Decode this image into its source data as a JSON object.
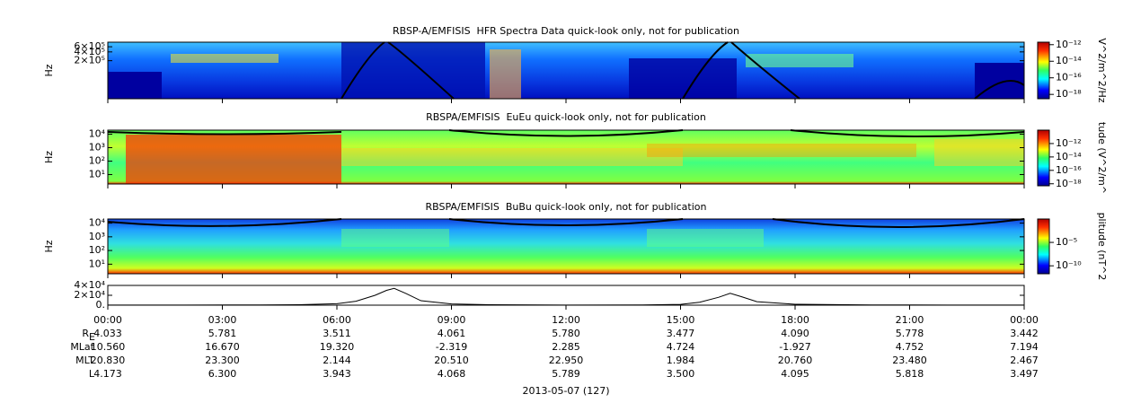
{
  "chart_data": [
    {
      "type": "spectrogram",
      "title": "RBSP-A/EMFISIS  HFR Spectra Data quick-look only, not for publication",
      "ylabel": "Hz",
      "log_y": true,
      "ylim": [
        10000,
        860000
      ],
      "yticks": [
        {
          "value": 200000,
          "label": "2×10⁵"
        },
        {
          "value": 400000,
          "label": "4×10⁵"
        },
        {
          "value": 600000,
          "label": "6×10⁵"
        }
      ],
      "colorbar": {
        "label": "V^2/m^2/Hz",
        "ylim": [
          3e-19,
          2e-12
        ],
        "yticks": [
          {
            "value": 1e-18,
            "label": "10⁻¹⁸"
          },
          {
            "value": 1e-16,
            "label": "10⁻¹⁶"
          },
          {
            "value": 1e-14,
            "label": "10⁻¹⁴"
          },
          {
            "value": 1e-12,
            "label": "10⁻¹²"
          }
        ]
      }
    },
    {
      "type": "spectrogram",
      "title": "RBSPA/EMFISIS  EuEu quick-look only, not for publication",
      "ylabel": "Hz",
      "log_y": true,
      "ylim": [
        2,
        20000
      ],
      "yticks": [
        {
          "value": 10,
          "label": "10¹"
        },
        {
          "value": 100,
          "label": "10²"
        },
        {
          "value": 1000,
          "label": "10³"
        },
        {
          "value": 10000,
          "label": "10⁴"
        }
      ],
      "colorbar": {
        "label": "tude (V^2/m^",
        "ylim": [
          5e-19,
          1e-10
        ],
        "yticks": [
          {
            "value": 1e-18,
            "label": "10⁻¹⁸"
          },
          {
            "value": 1e-16,
            "label": "10⁻¹⁶"
          },
          {
            "value": 1e-14,
            "label": "10⁻¹⁴"
          },
          {
            "value": 1e-12,
            "label": "10⁻¹²"
          }
        ]
      }
    },
    {
      "type": "spectrogram",
      "title": "RBSPA/EMFISIS  BuBu quick-look only, not for publication",
      "ylabel": "Hz",
      "log_y": true,
      "ylim": [
        2,
        20000
      ],
      "yticks": [
        {
          "value": 10,
          "label": "10¹"
        },
        {
          "value": 100,
          "label": "10²"
        },
        {
          "value": 1000,
          "label": "10³"
        },
        {
          "value": 10000,
          "label": "10⁴"
        }
      ],
      "colorbar": {
        "label": "plitude (nT^2",
        "ylim": [
          2e-12,
          1
        ],
        "yticks": [
          {
            "value": 1e-10,
            "label": "10⁻¹⁰"
          },
          {
            "value": 1e-05,
            "label": "10⁻⁵"
          }
        ]
      }
    },
    {
      "type": "line",
      "color": "#000000",
      "xlim": [
        0,
        24
      ],
      "ylim": [
        0,
        40000
      ],
      "yticks": [
        {
          "value": 0,
          "label": "0."
        },
        {
          "value": 20000,
          "label": "2×10⁴"
        },
        {
          "value": 40000,
          "label": "4×10⁴"
        }
      ],
      "x": [
        0,
        2,
        4,
        5,
        6,
        6.5,
        7,
        7.3,
        7.5,
        7.8,
        8.2,
        9,
        10,
        12,
        14,
        15,
        15.5,
        16,
        16.3,
        16.6,
        17,
        18,
        20,
        22,
        24
      ],
      "values": [
        200,
        300,
        500,
        1000,
        3000,
        8000,
        20000,
        30000,
        34000,
        24000,
        9000,
        2500,
        800,
        300,
        500,
        1500,
        6000,
        16000,
        24000,
        17000,
        7000,
        1800,
        500,
        300,
        200
      ]
    }
  ],
  "x_axis": {
    "ticks": [
      {
        "value": 0,
        "label": "00:00"
      },
      {
        "value": 3,
        "label": "03:00"
      },
      {
        "value": 6,
        "label": "06:00"
      },
      {
        "value": 9,
        "label": "09:00"
      },
      {
        "value": 12,
        "label": "12:00"
      },
      {
        "value": 15,
        "label": "15:00"
      },
      {
        "value": 18,
        "label": "18:00"
      },
      {
        "value": 21,
        "label": "21:00"
      },
      {
        "value": 24,
        "label": "00:00"
      }
    ]
  },
  "ephemeris": [
    {
      "label": "R",
      "sub": "E",
      "values": [
        "4.033",
        "5.781",
        "3.511",
        "4.061",
        "5.780",
        "3.477",
        "4.090",
        "5.778",
        "3.442"
      ]
    },
    {
      "label": "MLat",
      "values": [
        "10.560",
        "16.670",
        "19.320",
        "-2.319",
        "2.285",
        "4.724",
        "-1.927",
        "4.752",
        "7.194"
      ]
    },
    {
      "label": "MLT",
      "values": [
        "20.830",
        "23.300",
        "2.144",
        "20.510",
        "22.950",
        "1.984",
        "20.760",
        "23.480",
        "2.467"
      ]
    },
    {
      "label": "L",
      "values": [
        "4.173",
        "6.300",
        "3.943",
        "4.068",
        "5.789",
        "3.500",
        "4.095",
        "5.818",
        "3.497"
      ]
    }
  ],
  "date_label": "2013-05-07 (127)"
}
